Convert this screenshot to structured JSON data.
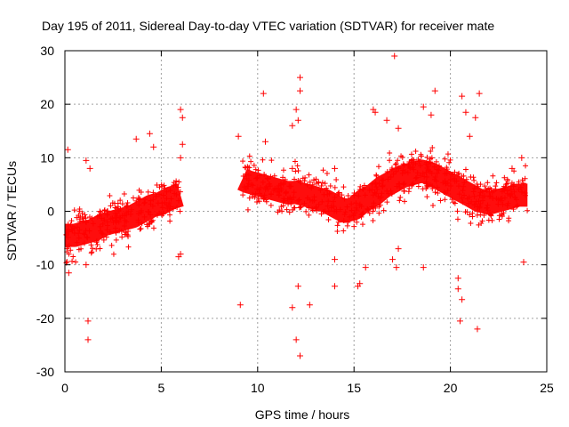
{
  "chart_data": {
    "type": "scatter",
    "title": "Day 195 of 2011, Sidereal Day-to-day VTEC variation (SDTVAR) for receiver mate",
    "xlabel": "GPS time / hours",
    "ylabel": "SDTVAR / TECUs",
    "xlim": [
      0,
      25
    ],
    "ylim": [
      -30,
      30
    ],
    "xticks": [
      0,
      5,
      10,
      15,
      20,
      25
    ],
    "yticks": [
      -30,
      -20,
      -10,
      0,
      10,
      20,
      30
    ],
    "grid": true,
    "marker": "+",
    "color": "#ff0000",
    "series": [
      {
        "name": "SDTVAR",
        "dense_trend": [
          [
            0.0,
            -4.5
          ],
          [
            0.5,
            -4.5
          ],
          [
            1.0,
            -4.0
          ],
          [
            1.5,
            -3.5
          ],
          [
            2.0,
            -2.5
          ],
          [
            2.5,
            -2.0
          ],
          [
            3.0,
            -1.5
          ],
          [
            3.5,
            -1.0
          ],
          [
            4.0,
            0.0
          ],
          [
            4.5,
            1.0
          ],
          [
            5.0,
            1.5
          ],
          [
            5.5,
            2.5
          ],
          [
            6.0,
            3.0
          ],
          [
            9.2,
            6.0
          ],
          [
            9.5,
            5.5
          ],
          [
            10.0,
            5.0
          ],
          [
            10.5,
            4.5
          ],
          [
            11.0,
            4.0
          ],
          [
            11.5,
            3.5
          ],
          [
            12.0,
            3.5
          ],
          [
            12.5,
            3.0
          ],
          [
            13.0,
            2.5
          ],
          [
            13.5,
            2.0
          ],
          [
            14.0,
            1.0
          ],
          [
            14.5,
            0.0
          ],
          [
            15.0,
            0.5
          ],
          [
            15.5,
            2.0
          ],
          [
            16.0,
            3.0
          ],
          [
            16.5,
            4.5
          ],
          [
            17.0,
            5.5
          ],
          [
            17.5,
            6.5
          ],
          [
            18.0,
            7.0
          ],
          [
            18.5,
            7.5
          ],
          [
            19.0,
            7.0
          ],
          [
            19.5,
            6.0
          ],
          [
            20.0,
            5.0
          ],
          [
            20.5,
            4.0
          ],
          [
            21.0,
            3.0
          ],
          [
            21.5,
            2.0
          ],
          [
            22.0,
            1.5
          ],
          [
            22.5,
            2.0
          ],
          [
            23.0,
            2.5
          ],
          [
            23.5,
            3.0
          ],
          [
            24.0,
            3.0
          ]
        ],
        "outliers": [
          [
            0.15,
            11.5
          ],
          [
            0.2,
            -11.5
          ],
          [
            1.1,
            -10.0
          ],
          [
            1.2,
            -20.5
          ],
          [
            1.2,
            -24.0
          ],
          [
            1.1,
            9.5
          ],
          [
            1.3,
            8.0
          ],
          [
            3.7,
            13.5
          ],
          [
            4.4,
            14.5
          ],
          [
            4.6,
            12.0
          ],
          [
            6.0,
            19.0
          ],
          [
            6.1,
            17.5
          ],
          [
            6.1,
            12.5
          ],
          [
            6.0,
            10.0
          ],
          [
            6.0,
            -8.0
          ],
          [
            5.9,
            -8.5
          ],
          [
            9.0,
            14.0
          ],
          [
            9.1,
            -17.5
          ],
          [
            10.3,
            22.0
          ],
          [
            10.4,
            13.0
          ],
          [
            11.8,
            8.0
          ],
          [
            11.8,
            16.0
          ],
          [
            12.0,
            19.0
          ],
          [
            12.1,
            17.0
          ],
          [
            12.2,
            25.0
          ],
          [
            12.2,
            22.5
          ],
          [
            11.8,
            -18.0
          ],
          [
            12.0,
            -24.0
          ],
          [
            12.1,
            -14.0
          ],
          [
            12.2,
            -27.0
          ],
          [
            12.7,
            -17.5
          ],
          [
            14.0,
            8.0
          ],
          [
            14.0,
            -14.0
          ],
          [
            14.0,
            -9.0
          ],
          [
            15.2,
            -14.0
          ],
          [
            15.3,
            -13.5
          ],
          [
            15.6,
            -10.5
          ],
          [
            16.0,
            19.0
          ],
          [
            16.1,
            18.5
          ],
          [
            16.7,
            17.0
          ],
          [
            17.1,
            29.0
          ],
          [
            17.3,
            15.5
          ],
          [
            17.0,
            -9.0
          ],
          [
            17.2,
            -10.5
          ],
          [
            17.3,
            -7.0
          ],
          [
            18.6,
            -10.5
          ],
          [
            18.6,
            19.5
          ],
          [
            19.2,
            22.5
          ],
          [
            19.0,
            18.0
          ],
          [
            20.6,
            21.5
          ],
          [
            20.8,
            18.5
          ],
          [
            21.0,
            14.0
          ],
          [
            21.5,
            22.0
          ],
          [
            21.3,
            17.5
          ],
          [
            20.4,
            -12.5
          ],
          [
            20.4,
            -14.5
          ],
          [
            20.6,
            -16.5
          ],
          [
            20.5,
            -20.5
          ],
          [
            21.4,
            -22.0
          ],
          [
            23.8,
            -9.5
          ],
          [
            23.7,
            10.0
          ],
          [
            23.2,
            8.0
          ]
        ]
      }
    ]
  }
}
